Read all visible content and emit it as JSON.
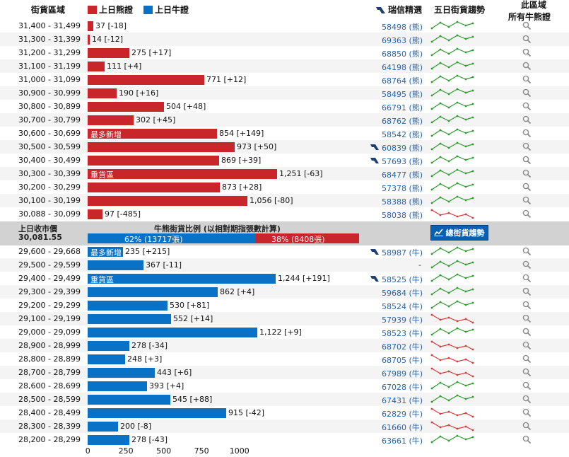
{
  "header": {
    "range_col": "街貨區域",
    "bear_legend": "上日熊證",
    "bull_legend": "上日牛證",
    "ubs_col": "瑞信精選",
    "trend_col": "五日街貨趨勢",
    "search_col_line1": "此區域",
    "search_col_line2": "所有牛熊證"
  },
  "colors": {
    "bear": "#c8262b",
    "bull": "#0a72c6",
    "link": "#2a62a8",
    "spark_up": "#2d9b2d",
    "spark_down": "#d63b3b"
  },
  "max_value": 1251,
  "bear_rows": [
    {
      "range": "31,400 - 31,499",
      "value": 37,
      "change": "[-18]",
      "ubs": "58498 (熊)",
      "flag": false,
      "trend": "up",
      "tag": ""
    },
    {
      "range": "31,300 - 31,399",
      "value": 14,
      "change": "[-12]",
      "ubs": "69363 (熊)",
      "flag": false,
      "trend": "up",
      "tag": ""
    },
    {
      "range": "31,200 - 31,299",
      "value": 275,
      "change": "[+17]",
      "ubs": "68850 (熊)",
      "flag": false,
      "trend": "up",
      "tag": ""
    },
    {
      "range": "31,100 - 31,199",
      "value": 111,
      "change": "[+4]",
      "ubs": "64198 (熊)",
      "flag": false,
      "trend": "up",
      "tag": ""
    },
    {
      "range": "31,000 - 31,099",
      "value": 771,
      "change": "[+12]",
      "ubs": "68764 (熊)",
      "flag": false,
      "trend": "up",
      "tag": ""
    },
    {
      "range": "30,900 - 30,999",
      "value": 190,
      "change": "[+16]",
      "ubs": "58495 (熊)",
      "flag": false,
      "trend": "up",
      "tag": ""
    },
    {
      "range": "30,800 - 30,899",
      "value": 504,
      "change": "[+48]",
      "ubs": "66791 (熊)",
      "flag": false,
      "trend": "up",
      "tag": ""
    },
    {
      "range": "30,700 - 30,799",
      "value": 302,
      "change": "[+45]",
      "ubs": "68762 (熊)",
      "flag": false,
      "trend": "up",
      "tag": ""
    },
    {
      "range": "30,600 - 30,699",
      "value": 854,
      "change": "[+149]",
      "ubs": "58542 (熊)",
      "flag": false,
      "trend": "up",
      "tag": "最多新增"
    },
    {
      "range": "30,500 - 30,599",
      "value": 973,
      "change": "[+50]",
      "ubs": "60839 (熊)",
      "flag": true,
      "trend": "up",
      "tag": ""
    },
    {
      "range": "30,400 - 30,499",
      "value": 869,
      "change": "[+39]",
      "ubs": "57693 (熊)",
      "flag": true,
      "trend": "up",
      "tag": ""
    },
    {
      "range": "30,300 - 30,399",
      "value": 1251,
      "change": "[-63]",
      "ubs": "68477 (熊)",
      "flag": false,
      "trend": "up",
      "tag": "重貨區"
    },
    {
      "range": "30,200 - 30,299",
      "value": 873,
      "change": "[+28]",
      "ubs": "57378 (熊)",
      "flag": false,
      "trend": "up",
      "tag": ""
    },
    {
      "range": "30,100 - 30,199",
      "value": 1056,
      "change": "[-80]",
      "ubs": "58388 (熊)",
      "flag": false,
      "trend": "up",
      "tag": ""
    },
    {
      "range": "30,088 - 30,099",
      "value": 97,
      "change": "[-485]",
      "ubs": "58038 (熊)",
      "flag": false,
      "trend": "down",
      "tag": ""
    }
  ],
  "middle": {
    "close_label": "上日收市價",
    "close_value": "30,081.55",
    "ratio_title": "牛熊街貨比例 (以相對期指張數計算)",
    "bull_ratio": 62,
    "bull_text": "62% (13717張)",
    "bear_text": "38% (8408張)",
    "trend_button": "總街貨趨勢"
  },
  "bull_rows": [
    {
      "range": "29,600 - 29,668",
      "value": 235,
      "change": "[+215]",
      "ubs": "58987 (牛)",
      "flag": true,
      "trend": "up",
      "tag": "最多新增"
    },
    {
      "range": "29,500 - 29,599",
      "value": 367,
      "change": "[-11]",
      "ubs": "-",
      "flag": false,
      "trend": "up",
      "tag": ""
    },
    {
      "range": "29,400 - 29,499",
      "value": 1244,
      "change": "[+191]",
      "ubs": "58525 (牛)",
      "flag": true,
      "trend": "up",
      "tag": "重貨區"
    },
    {
      "range": "29,300 - 29,399",
      "value": 862,
      "change": "[+4]",
      "ubs": "59684 (牛)",
      "flag": false,
      "trend": "up",
      "tag": ""
    },
    {
      "range": "29,200 - 29,299",
      "value": 530,
      "change": "[+81]",
      "ubs": "58524 (牛)",
      "flag": false,
      "trend": "up",
      "tag": ""
    },
    {
      "range": "29,100 - 29,199",
      "value": 552,
      "change": "[+14]",
      "ubs": "57939 (牛)",
      "flag": false,
      "trend": "down",
      "tag": ""
    },
    {
      "range": "29,000 - 29,099",
      "value": 1122,
      "change": "[+9]",
      "ubs": "58523 (牛)",
      "flag": false,
      "trend": "up",
      "tag": ""
    },
    {
      "range": "28,900 - 28,999",
      "value": 278,
      "change": "[-34]",
      "ubs": "68702 (牛)",
      "flag": false,
      "trend": "down",
      "tag": ""
    },
    {
      "range": "28,800 - 28,899",
      "value": 248,
      "change": "[+3]",
      "ubs": "68705 (牛)",
      "flag": false,
      "trend": "down",
      "tag": ""
    },
    {
      "range": "28,700 - 28,799",
      "value": 443,
      "change": "[+6]",
      "ubs": "67989 (牛)",
      "flag": false,
      "trend": "down",
      "tag": ""
    },
    {
      "range": "28,600 - 28,699",
      "value": 393,
      "change": "[+4]",
      "ubs": "67028 (牛)",
      "flag": false,
      "trend": "up",
      "tag": ""
    },
    {
      "range": "28,500 - 28,599",
      "value": 545,
      "change": "[+88]",
      "ubs": "67431 (牛)",
      "flag": false,
      "trend": "up",
      "tag": ""
    },
    {
      "range": "28,400 - 28,499",
      "value": 915,
      "change": "[-42]",
      "ubs": "62829 (牛)",
      "flag": false,
      "trend": "down",
      "tag": ""
    },
    {
      "range": "28,300 - 28,399",
      "value": 200,
      "change": "[-8]",
      "ubs": "61660 (牛)",
      "flag": false,
      "trend": "down",
      "tag": ""
    },
    {
      "range": "28,200 - 28,299",
      "value": 278,
      "change": "[-43]",
      "ubs": "63661 (牛)",
      "flag": false,
      "trend": "up",
      "tag": ""
    }
  ],
  "axis": {
    "ticks": [
      "0",
      "250",
      "500",
      "750",
      "1000"
    ]
  }
}
